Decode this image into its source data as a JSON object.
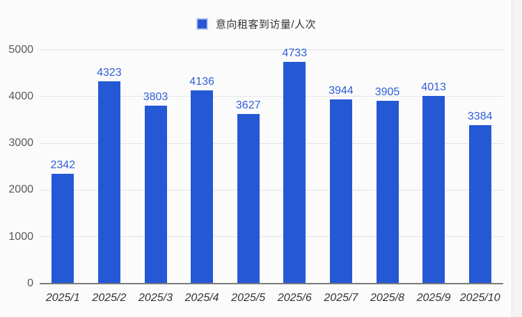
{
  "legend": {
    "label": "意向租客到访量/人次"
  },
  "chart_data": {
    "type": "bar",
    "title": "",
    "xlabel": "",
    "ylabel": "",
    "categories": [
      "2025/1",
      "2025/2",
      "2025/3",
      "2025/4",
      "2025/5",
      "2025/6",
      "2025/7",
      "2025/8",
      "2025/9",
      "2025/10"
    ],
    "series": [
      {
        "name": "意向租客到访量/人次",
        "values": [
          2342,
          4323,
          3803,
          4136,
          3627,
          4733,
          3944,
          3905,
          4013,
          3384
        ]
      }
    ],
    "ylim": [
      0,
      5000
    ],
    "yticks": [
      0,
      1000,
      2000,
      3000,
      4000,
      5000
    ],
    "grid": true,
    "legend_position": "top",
    "bar_color": "#2558d4",
    "value_label_color": "#2d5ed8"
  }
}
